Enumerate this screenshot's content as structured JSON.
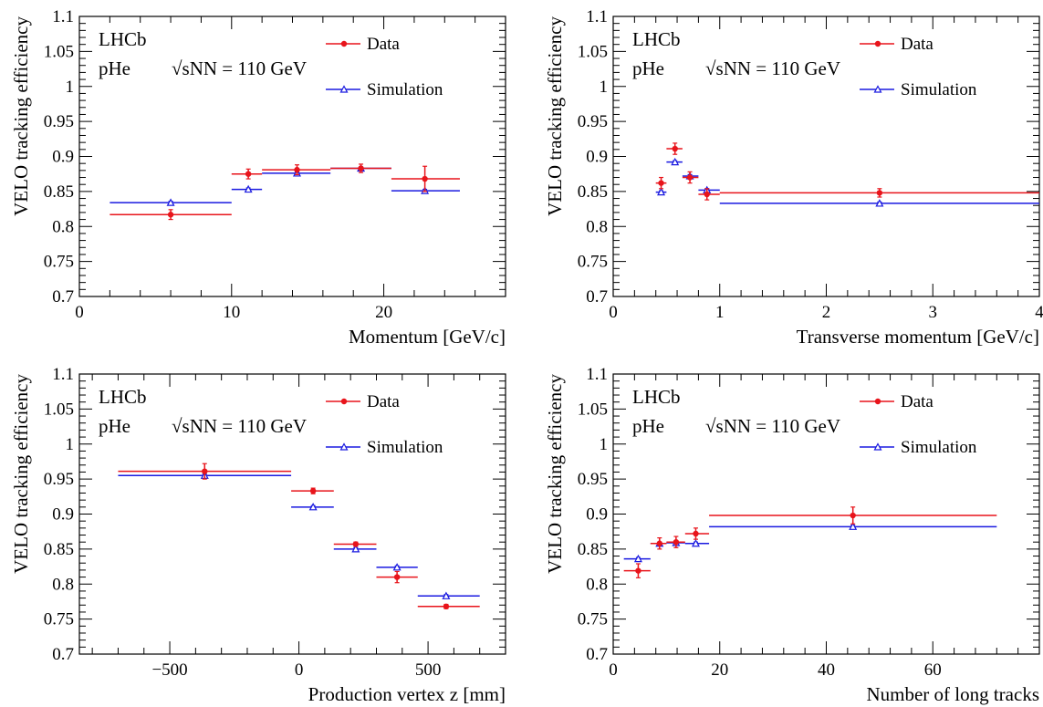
{
  "colors": {
    "data": "#e8141b",
    "simulation": "#1a1ae0"
  },
  "chart_data": [
    {
      "type": "scatter",
      "experiment": "LHCb",
      "beam_label": "pHe",
      "energy_label": "√sNN = 110 GeV",
      "xlabel": "Momentum [GeV/c]",
      "ylabel": "VELO tracking efficiency",
      "xlim": [
        0,
        28
      ],
      "ylim": [
        0.7,
        1.1
      ],
      "xticks": [
        0,
        10,
        20
      ],
      "yticks": [
        0.7,
        0.75,
        0.8,
        0.85,
        0.9,
        0.95,
        1,
        1.05,
        1.1
      ],
      "ytick_labels": [
        "0.7",
        "0.75",
        "0.8",
        "0.85",
        "0.9",
        "0.95",
        "1",
        "1.05",
        "1.1"
      ],
      "legend_placement": "top-right",
      "series": [
        {
          "name": "Data",
          "points": [
            {
              "x": 6.0,
              "xlo": 2.0,
              "xhi": 10.0,
              "y": 0.817,
              "yerr": 0.007
            },
            {
              "x": 11.1,
              "xlo": 10.0,
              "xhi": 12.0,
              "y": 0.875,
              "yerr": 0.007
            },
            {
              "x": 14.3,
              "xlo": 12.0,
              "xhi": 16.5,
              "y": 0.881,
              "yerr": 0.007
            },
            {
              "x": 18.5,
              "xlo": 16.5,
              "xhi": 20.5,
              "y": 0.883,
              "yerr": 0.006
            },
            {
              "x": 22.7,
              "xlo": 20.5,
              "xhi": 25.0,
              "y": 0.868,
              "yerr": 0.018
            }
          ]
        },
        {
          "name": "Simulation",
          "points": [
            {
              "x": 6.0,
              "xlo": 2.0,
              "xhi": 10.0,
              "y": 0.834,
              "yerr": 0.002
            },
            {
              "x": 11.1,
              "xlo": 10.0,
              "xhi": 12.0,
              "y": 0.853,
              "yerr": 0.002
            },
            {
              "x": 14.3,
              "xlo": 12.0,
              "xhi": 16.5,
              "y": 0.876,
              "yerr": 0.002
            },
            {
              "x": 18.5,
              "xlo": 16.5,
              "xhi": 20.5,
              "y": 0.883,
              "yerr": 0.002
            },
            {
              "x": 22.7,
              "xlo": 20.5,
              "xhi": 25.0,
              "y": 0.851,
              "yerr": 0.002
            }
          ]
        }
      ]
    },
    {
      "type": "scatter",
      "experiment": "LHCb",
      "beam_label": "pHe",
      "energy_label": "√sNN = 110 GeV",
      "xlabel": "Transverse momentum [GeV/c]",
      "ylabel": "VELO tracking efficiency",
      "xlim": [
        0,
        4
      ],
      "ylim": [
        0.7,
        1.1
      ],
      "xticks": [
        0,
        1,
        2,
        3,
        4
      ],
      "yticks": [
        0.7,
        0.75,
        0.8,
        0.85,
        0.9,
        0.95,
        1,
        1.05,
        1.1
      ],
      "ytick_labels": [
        "0.7",
        "0.75",
        "0.8",
        "0.85",
        "0.9",
        "0.95",
        "1",
        "1.05",
        "1.1"
      ],
      "legend_placement": "top-right",
      "series": [
        {
          "name": "Data",
          "points": [
            {
              "x": 0.45,
              "xlo": 0.4,
              "xhi": 0.5,
              "y": 0.862,
              "yerr": 0.008
            },
            {
              "x": 0.58,
              "xlo": 0.5,
              "xhi": 0.65,
              "y": 0.911,
              "yerr": 0.008
            },
            {
              "x": 0.72,
              "xlo": 0.65,
              "xhi": 0.8,
              "y": 0.87,
              "yerr": 0.008
            },
            {
              "x": 0.88,
              "xlo": 0.8,
              "xhi": 1.0,
              "y": 0.846,
              "yerr": 0.008
            },
            {
              "x": 2.5,
              "xlo": 1.0,
              "xhi": 4.0,
              "y": 0.848,
              "yerr": 0.006
            }
          ]
        },
        {
          "name": "Simulation",
          "points": [
            {
              "x": 0.45,
              "xlo": 0.4,
              "xhi": 0.5,
              "y": 0.849,
              "yerr": 0.002
            },
            {
              "x": 0.58,
              "xlo": 0.5,
              "xhi": 0.65,
              "y": 0.892,
              "yerr": 0.002
            },
            {
              "x": 0.72,
              "xlo": 0.65,
              "xhi": 0.8,
              "y": 0.872,
              "yerr": 0.002
            },
            {
              "x": 0.88,
              "xlo": 0.8,
              "xhi": 1.0,
              "y": 0.852,
              "yerr": 0.002
            },
            {
              "x": 2.5,
              "xlo": 1.0,
              "xhi": 4.0,
              "y": 0.833,
              "yerr": 0.002
            }
          ]
        }
      ]
    },
    {
      "type": "scatter",
      "experiment": "LHCb",
      "beam_label": "pHe",
      "energy_label": "√sNN = 110 GeV",
      "xlabel": "Production vertex z [mm]",
      "ylabel": "VELO tracking efficiency",
      "xlim": [
        -850,
        800
      ],
      "ylim": [
        0.7,
        1.1
      ],
      "xticks": [
        -500,
        0,
        500
      ],
      "xtick_labels": [
        "−500",
        "0",
        "500"
      ],
      "yticks": [
        0.7,
        0.75,
        0.8,
        0.85,
        0.9,
        0.95,
        1,
        1.05,
        1.1
      ],
      "ytick_labels": [
        "0.7",
        "0.75",
        "0.8",
        "0.85",
        "0.9",
        "0.95",
        "1",
        "1.05",
        "1.1"
      ],
      "legend_placement": "top-right",
      "series": [
        {
          "name": "Data",
          "points": [
            {
              "x": -365,
              "xlo": -700,
              "xhi": -30,
              "y": 0.961,
              "yerr": 0.011
            },
            {
              "x": 55,
              "xlo": -30,
              "xhi": 135,
              "y": 0.933,
              "yerr": 0.004
            },
            {
              "x": 220,
              "xlo": 135,
              "xhi": 300,
              "y": 0.857,
              "yerr": 0.003
            },
            {
              "x": 380,
              "xlo": 300,
              "xhi": 460,
              "y": 0.81,
              "yerr": 0.008
            },
            {
              "x": 570,
              "xlo": 460,
              "xhi": 700,
              "y": 0.768,
              "yerr": 0.003
            }
          ]
        },
        {
          "name": "Simulation",
          "points": [
            {
              "x": -365,
              "xlo": -700,
              "xhi": -30,
              "y": 0.955,
              "yerr": 0.002
            },
            {
              "x": 55,
              "xlo": -30,
              "xhi": 135,
              "y": 0.91,
              "yerr": 0.002
            },
            {
              "x": 220,
              "xlo": 135,
              "xhi": 300,
              "y": 0.85,
              "yerr": 0.002
            },
            {
              "x": 380,
              "xlo": 300,
              "xhi": 460,
              "y": 0.824,
              "yerr": 0.002
            },
            {
              "x": 570,
              "xlo": 460,
              "xhi": 700,
              "y": 0.783,
              "yerr": 0.002
            }
          ]
        }
      ]
    },
    {
      "type": "scatter",
      "experiment": "LHCb",
      "beam_label": "pHe",
      "energy_label": "√sNN = 110 GeV",
      "xlabel": "Number of long tracks",
      "ylabel": "VELO tracking efficiency",
      "xlim": [
        0,
        80
      ],
      "ylim": [
        0.7,
        1.1
      ],
      "xticks": [
        0,
        20,
        40,
        60
      ],
      "yticks": [
        0.7,
        0.75,
        0.8,
        0.85,
        0.9,
        0.95,
        1,
        1.05,
        1.1
      ],
      "ytick_labels": [
        "0.7",
        "0.75",
        "0.8",
        "0.85",
        "0.9",
        "0.95",
        "1",
        "1.05",
        "1.1"
      ],
      "legend_placement": "top-right",
      "series": [
        {
          "name": "Data",
          "points": [
            {
              "x": 4.7,
              "xlo": 2.0,
              "xhi": 7.0,
              "y": 0.819,
              "yerr": 0.01
            },
            {
              "x": 8.7,
              "xlo": 7.0,
              "xhi": 10.0,
              "y": 0.858,
              "yerr": 0.008
            },
            {
              "x": 11.8,
              "xlo": 10.0,
              "xhi": 13.5,
              "y": 0.86,
              "yerr": 0.008
            },
            {
              "x": 15.5,
              "xlo": 13.5,
              "xhi": 18.0,
              "y": 0.872,
              "yerr": 0.008
            },
            {
              "x": 45.0,
              "xlo": 18.0,
              "xhi": 72.0,
              "y": 0.898,
              "yerr": 0.012
            }
          ]
        },
        {
          "name": "Simulation",
          "points": [
            {
              "x": 4.7,
              "xlo": 2.0,
              "xhi": 7.0,
              "y": 0.836,
              "yerr": 0.002
            },
            {
              "x": 8.7,
              "xlo": 7.0,
              "xhi": 10.0,
              "y": 0.858,
              "yerr": 0.002
            },
            {
              "x": 11.8,
              "xlo": 10.0,
              "xhi": 13.5,
              "y": 0.859,
              "yerr": 0.002
            },
            {
              "x": 15.5,
              "xlo": 13.5,
              "xhi": 18.0,
              "y": 0.858,
              "yerr": 0.002
            },
            {
              "x": 45.0,
              "xlo": 18.0,
              "xhi": 72.0,
              "y": 0.882,
              "yerr": 0.002
            }
          ]
        }
      ]
    }
  ]
}
